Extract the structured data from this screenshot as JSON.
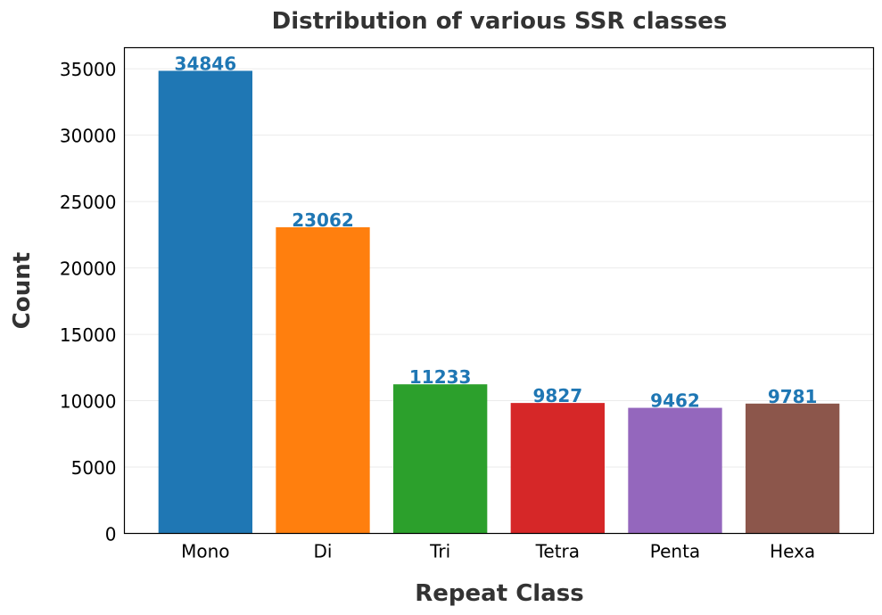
{
  "chart_data": {
    "type": "bar",
    "title": "Distribution of various SSR classes",
    "xlabel": "Repeat Class",
    "ylabel": "Count",
    "categories": [
      "Mono",
      "Di",
      "Tri",
      "Tetra",
      "Penta",
      "Hexa"
    ],
    "values": [
      34846,
      23062,
      11233,
      9827,
      9462,
      9781
    ],
    "colors": [
      "#1f77b4",
      "#ff7f0e",
      "#2ca02c",
      "#d62728",
      "#9467bd",
      "#8c564b"
    ],
    "label_color": "#1f77b4",
    "ylim": [
      0,
      36588
    ],
    "yticks": [
      0,
      5000,
      10000,
      15000,
      20000,
      25000,
      30000,
      35000
    ],
    "grid": "horizontal",
    "legend": "none"
  }
}
